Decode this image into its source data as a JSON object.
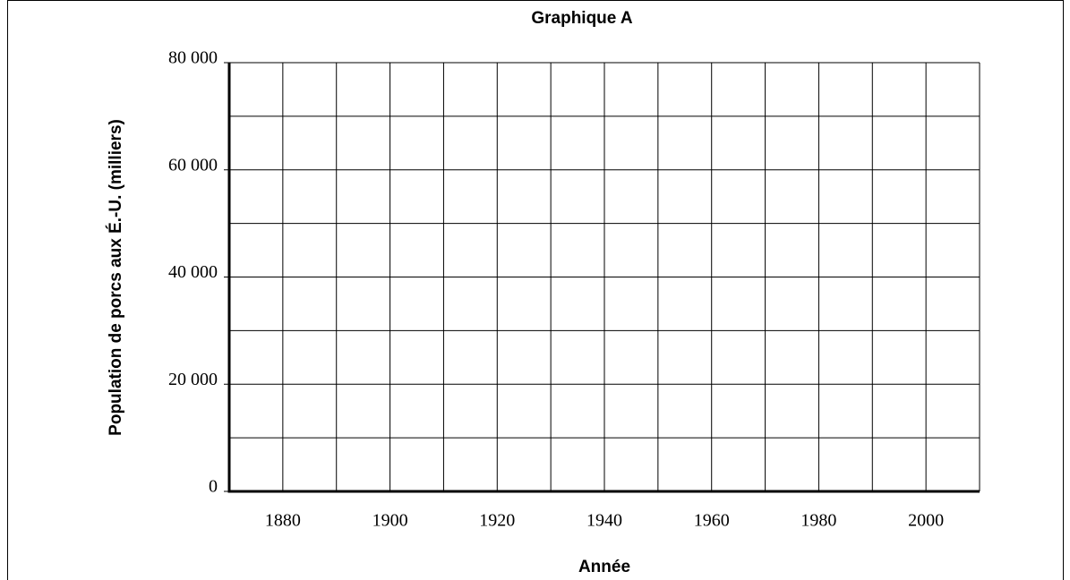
{
  "chart_data": {
    "type": "line",
    "title": "Graphique A",
    "xlabel": "Année",
    "ylabel": "Population de porcs aux É.-U. (milliers)",
    "xlim": [
      1870,
      2010
    ],
    "ylim": [
      0,
      80000
    ],
    "xticks": [
      1880,
      1900,
      1920,
      1940,
      1960,
      1980,
      2000
    ],
    "yticks": [
      0,
      {
        "value": 20000,
        "label": "20 000"
      },
      {
        "value": 40000,
        "label": "40 000"
      },
      {
        "value": 60000,
        "label": "60 000"
      },
      {
        "value": 80000,
        "label": "80 000"
      }
    ],
    "xgrid": [
      1870,
      1880,
      1890,
      1900,
      1910,
      1920,
      1930,
      1940,
      1950,
      1960,
      1970,
      1980,
      1990,
      2000,
      2010
    ],
    "ygrid": [
      0,
      10000,
      20000,
      30000,
      40000,
      50000,
      60000,
      70000,
      80000
    ],
    "grid": true
  }
}
